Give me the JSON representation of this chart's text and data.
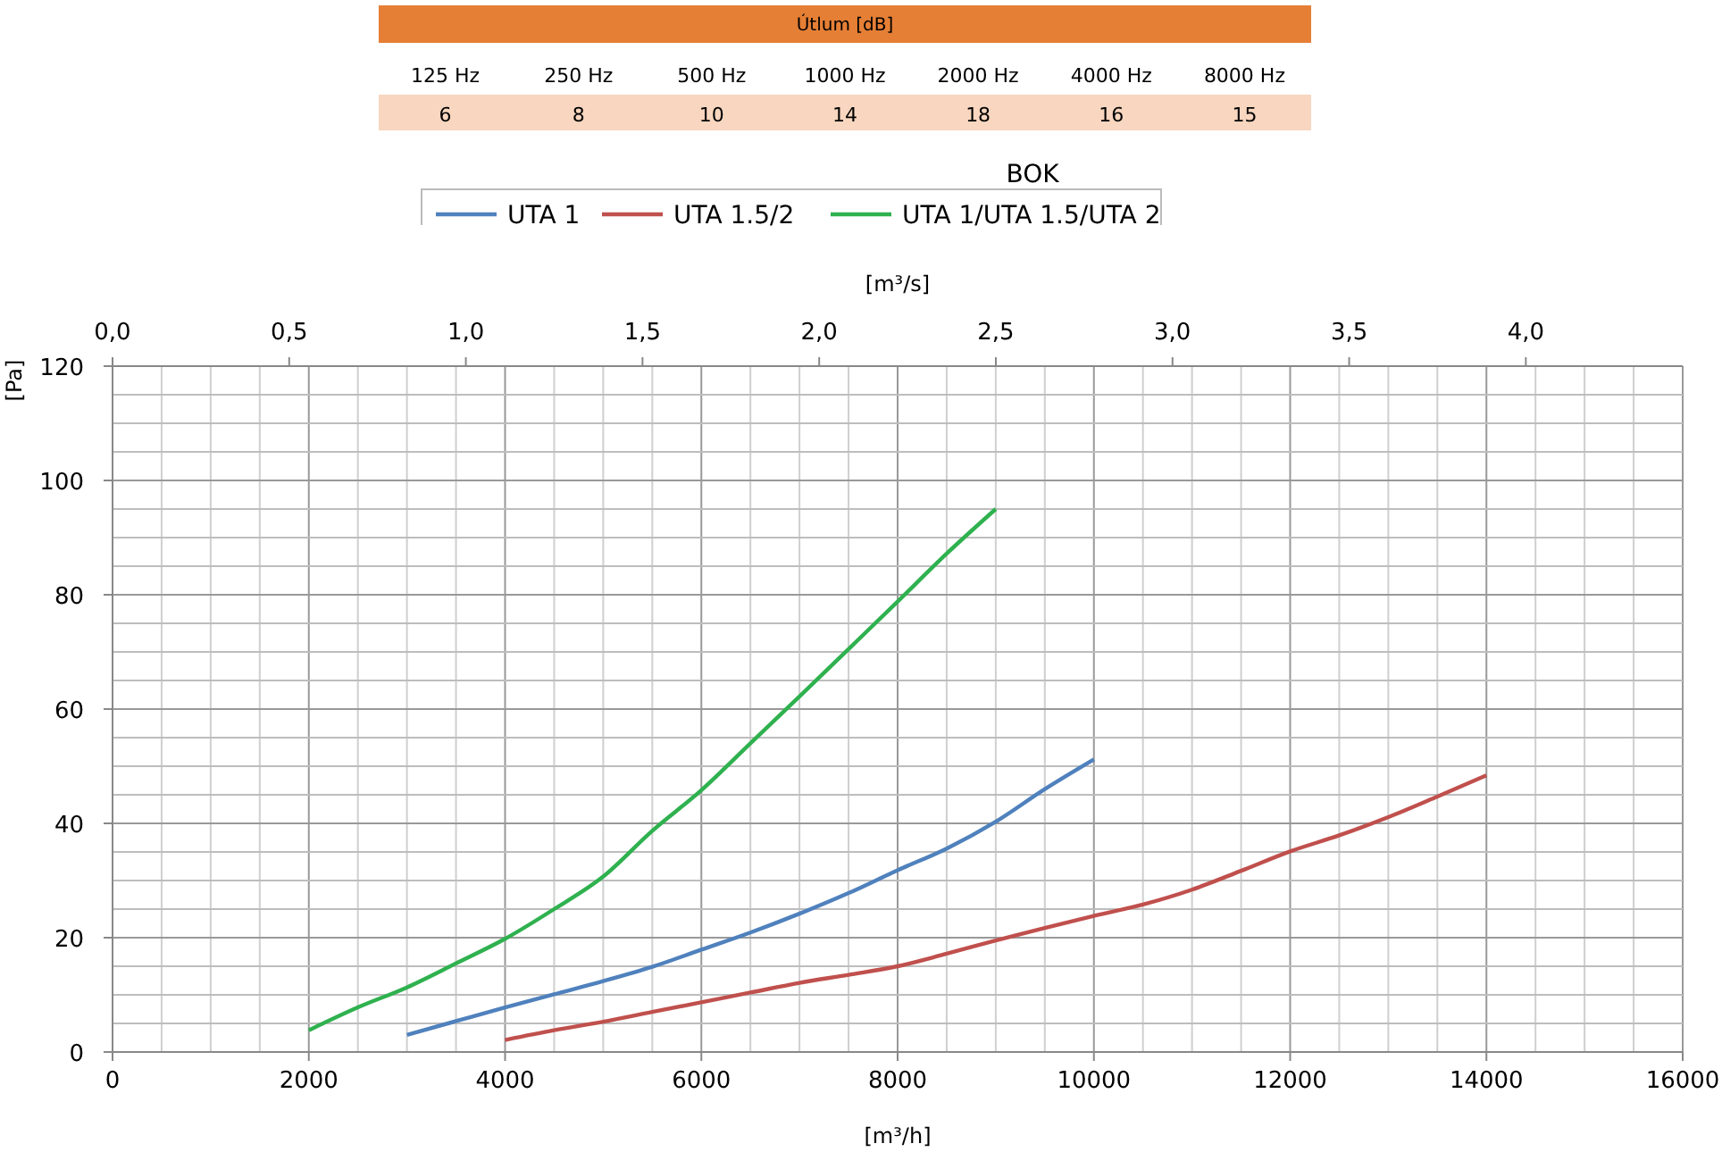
{
  "chart_data": [
    {
      "type": "other",
      "title": "Útlum [dB]",
      "categories": [
        "125 Hz",
        "250 Hz",
        "500 Hz",
        "1000 Hz",
        "2000 Hz",
        "4000 Hz",
        "8000 Hz"
      ],
      "values": [
        6,
        8,
        10,
        14,
        18,
        16,
        15
      ],
      "data_labels": true
    },
    {
      "type": "line",
      "xlabel": "[m³/h]",
      "x2label": "[m³/s]",
      "ylabel": "[Pa]",
      "legend_title": "BOK",
      "legend": "top",
      "grid": true,
      "line_style": "solid",
      "marker": "none",
      "xlim": [
        0,
        16000
      ],
      "xticks": [
        0,
        {
          "value": 500,
          "label": null
        },
        {
          "value": 1000,
          "label": null
        },
        {
          "value": 1500,
          "label": null
        },
        2000,
        {
          "value": 2500,
          "label": null
        },
        {
          "value": 3000,
          "label": null
        },
        {
          "value": 3500,
          "label": null
        },
        4000,
        {
          "value": 4500,
          "label": null
        },
        {
          "value": 5000,
          "label": null
        },
        {
          "value": 5500,
          "label": null
        },
        6000,
        {
          "value": 6500,
          "label": null
        },
        {
          "value": 7000,
          "label": null
        },
        {
          "value": 7500,
          "label": null
        },
        8000,
        {
          "value": 8500,
          "label": null
        },
        {
          "value": 9000,
          "label": null
        },
        {
          "value": 9500,
          "label": null
        },
        10000,
        {
          "value": 10500,
          "label": null
        },
        {
          "value": 11000,
          "label": null
        },
        {
          "value": 11500,
          "label": null
        },
        12000,
        {
          "value": 12500,
          "label": null
        },
        {
          "value": 13000,
          "label": null
        },
        {
          "value": 13500,
          "label": null
        },
        14000,
        {
          "value": 14500,
          "label": null
        },
        {
          "value": 15000,
          "label": null
        },
        {
          "value": 15500,
          "label": null
        },
        16000
      ],
      "x2lim": [
        0,
        4.444
      ],
      "x2ticks": [
        {
          "value": 0,
          "label": "0,0"
        },
        {
          "value": 0.5,
          "label": "0,5"
        },
        {
          "value": 1,
          "label": "1,0"
        },
        {
          "value": 1.5,
          "label": "1,5"
        },
        {
          "value": 2,
          "label": "2,0"
        },
        {
          "value": 2.5,
          "label": "2,5"
        },
        {
          "value": 3,
          "label": "3,0"
        },
        {
          "value": 3.5,
          "label": "3,5"
        },
        {
          "value": 4,
          "label": "4,0"
        }
      ],
      "ylim": [
        0,
        120
      ],
      "yticks": [
        0,
        {
          "value": 5,
          "label": null
        },
        {
          "value": 10,
          "label": null
        },
        {
          "value": 15,
          "label": null
        },
        20,
        {
          "value": 25,
          "label": null
        },
        {
          "value": 30,
          "label": null
        },
        {
          "value": 35,
          "label": null
        },
        40,
        {
          "value": 45,
          "label": null
        },
        {
          "value": 50,
          "label": null
        },
        {
          "value": 55,
          "label": null
        },
        60,
        {
          "value": 65,
          "label": null
        },
        {
          "value": 70,
          "label": null
        },
        {
          "value": 75,
          "label": null
        },
        80,
        {
          "value": 85,
          "label": null
        },
        {
          "value": 90,
          "label": null
        },
        {
          "value": 95,
          "label": null
        },
        100,
        {
          "value": 105,
          "label": null
        },
        {
          "value": 110,
          "label": null
        },
        {
          "value": 115,
          "label": null
        },
        120
      ],
      "series": [
        {
          "name": "UTA 1",
          "color": "#4f81bd",
          "x": [
            3000,
            3500,
            4000,
            4500,
            5000,
            5500,
            6000,
            6500,
            7000,
            7500,
            8000,
            8500,
            9000,
            9500,
            10000
          ],
          "values": [
            3.0,
            5.4,
            7.8,
            10.1,
            12.4,
            14.9,
            17.9,
            20.9,
            24.2,
            27.8,
            31.8,
            35.6,
            40.3,
            46,
            51.2
          ]
        },
        {
          "name": "UTA  1.5/2",
          "color": "#c0504d",
          "x": [
            4000,
            4500,
            5000,
            5500,
            6000,
            6500,
            7000,
            7500,
            8000,
            8500,
            9000,
            9500,
            10000,
            10500,
            11000,
            11500,
            12000,
            12500,
            13000,
            13500,
            14000
          ],
          "values": [
            2.1,
            3.8,
            5.3,
            7.0,
            8.7,
            10.4,
            12.1,
            13.5,
            15.0,
            17.2,
            19.5,
            21.7,
            23.8,
            25.8,
            28.4,
            31.7,
            35.1,
            37.9,
            41.1,
            44.7,
            48.4
          ]
        },
        {
          "name": "UTA 1/UTA 1.5/UTA 2",
          "color": "#2fb14f",
          "x": [
            2000,
            2500,
            3000,
            3500,
            4000,
            4500,
            5000,
            5500,
            6000,
            6500,
            7000,
            7500,
            8000,
            8500,
            9000
          ],
          "values": [
            3.8,
            7.8,
            11.3,
            15.5,
            19.8,
            25.0,
            30.7,
            38.7,
            45.8,
            54.0,
            62.2,
            70.5,
            78.8,
            87.2,
            95.0
          ]
        }
      ]
    }
  ]
}
